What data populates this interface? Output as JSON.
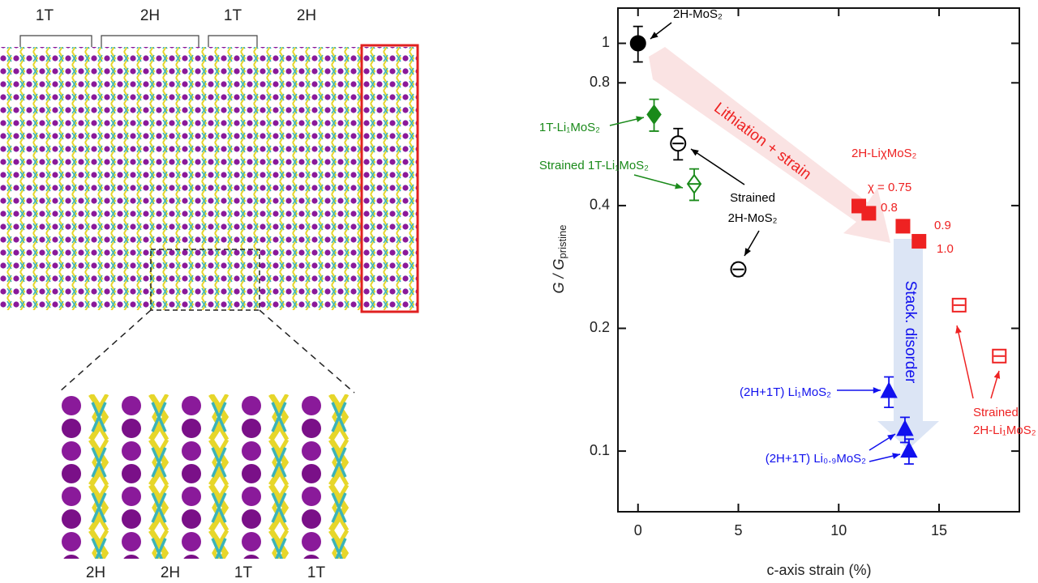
{
  "structure_labels": {
    "top": [
      "1T",
      "2H",
      "1T",
      "2H"
    ],
    "bottom": [
      "2H",
      "2H",
      "1T",
      "1T"
    ]
  },
  "chart_data": {
    "type": "scatter",
    "xlabel": "c-axis strain (%)",
    "ylabel": {
      "main": "G / G",
      "sub": "pristine"
    },
    "xlim": [
      -1,
      19
    ],
    "xticks": [
      0,
      5,
      10,
      15
    ],
    "ylim": [
      0.071,
      1.22
    ],
    "yticks": [
      0.1,
      0.2,
      0.4,
      0.8,
      1
    ],
    "log_y": true,
    "annotations": [
      "Lithiation + strain",
      "Stack. disorder"
    ],
    "series": [
      {
        "label": [
          "2H-MoS₂"
        ],
        "color": "#000000",
        "marker": "circle",
        "filled": true,
        "x": [
          0
        ],
        "values": [
          1
        ],
        "errors": [
          0.1
        ]
      },
      {
        "label": [
          "1T-Li₁MoS₂"
        ],
        "color": "#1a8a1a",
        "marker": "diamond",
        "filled": true,
        "x": [
          0.8
        ],
        "values": [
          0.669
        ],
        "errors": [
          0.06
        ]
      },
      {
        "label": [
          "Strained 1T-Li₁MoS₂"
        ],
        "color": "#1a8a1a",
        "marker": "diamond",
        "filled": false,
        "x": [
          2.8
        ],
        "values": [
          0.452
        ],
        "errors": [
          0.04
        ]
      },
      {
        "label": [
          "Strained",
          "2H-MoS₂"
        ],
        "color": "#000000",
        "marker": "circle",
        "filled": false,
        "x": [
          2,
          5
        ],
        "values": [
          0.568,
          0.279
        ],
        "errors": [
          0.05,
          0.01
        ]
      },
      {
        "label": [
          "2H-LiχMoS₂"
        ],
        "color": "#ee2222",
        "marker": "square",
        "filled": true,
        "x": [
          11,
          11.5,
          13.2,
          14
        ],
        "values": [
          0.399,
          0.383,
          0.356,
          0.327
        ],
        "point_labels": [
          "χ = 0.75",
          "0.8",
          "0.9",
          "1.0"
        ]
      },
      {
        "label": [
          "(2H+1T) Li₁MoS₂"
        ],
        "color": "#1111ee",
        "marker": "triangle",
        "filled": true,
        "x": [
          12.5
        ],
        "values": [
          0.14
        ],
        "errors": [
          0.012
        ]
      },
      {
        "label": [
          "(2H+1T) Li₀.₉MoS₂"
        ],
        "color": "#1111ee",
        "marker": "triangle",
        "filled": true,
        "x": [
          13.3,
          13.5
        ],
        "values": [
          0.113,
          0.1
        ],
        "errors": [
          0.008,
          0.007
        ]
      },
      {
        "label": [
          "Strained",
          "2H-Li₁MoS₂"
        ],
        "color": "#ee2222",
        "marker": "square",
        "filled": false,
        "x": [
          16,
          18
        ],
        "values": [
          0.228,
          0.171
        ]
      }
    ]
  }
}
